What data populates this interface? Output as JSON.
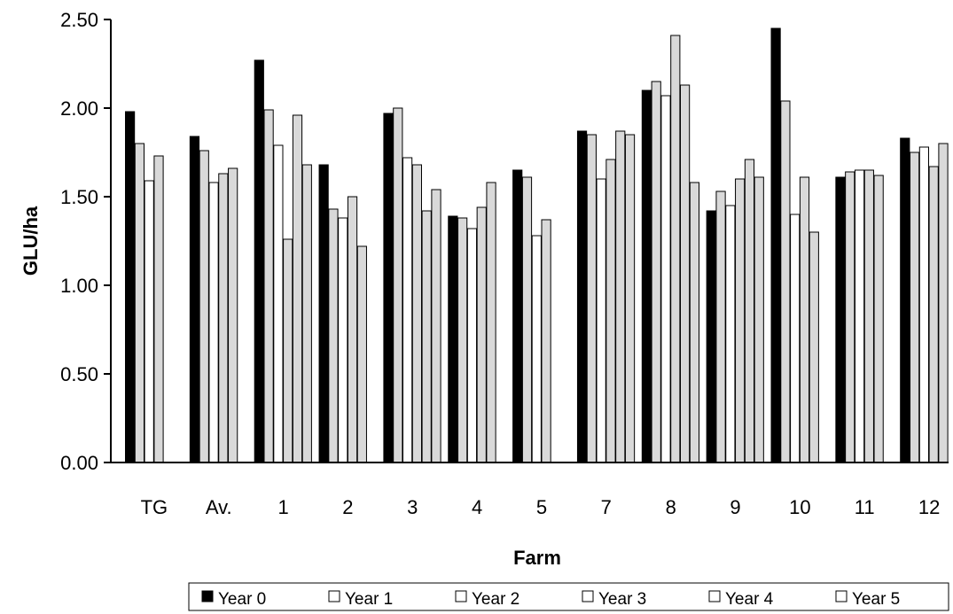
{
  "chart_data": {
    "type": "bar",
    "title": "",
    "xlabel": "Farm",
    "ylabel": "GLU/ha",
    "ylim": [
      0,
      2.5
    ],
    "yticks": [
      "0.00",
      "0.50",
      "1.00",
      "1.50",
      "2.00",
      "2.50"
    ],
    "grid": false,
    "legend_position": "bottom",
    "categories": [
      "TG",
      "Av.",
      "1",
      "2",
      "3",
      "4",
      "5",
      "7",
      "8",
      "9",
      "10",
      "11",
      "12"
    ],
    "series": [
      {
        "name": "Year 0",
        "color": "#000000",
        "values": [
          1.98,
          1.84,
          2.27,
          1.68,
          1.97,
          1.39,
          1.65,
          1.87,
          2.1,
          1.42,
          2.45,
          1.61,
          1.83
        ]
      },
      {
        "name": "Year 1",
        "color": "#d9d9d9",
        "values": [
          1.8,
          1.76,
          1.99,
          1.43,
          2.0,
          1.38,
          1.61,
          1.85,
          2.15,
          1.53,
          2.04,
          1.64,
          1.75
        ]
      },
      {
        "name": "Year 2",
        "color": "#ffffff",
        "values": [
          1.59,
          1.58,
          1.79,
          1.38,
          1.72,
          1.32,
          1.28,
          1.6,
          2.07,
          1.45,
          1.4,
          1.65,
          1.78
        ]
      },
      {
        "name": "Year 3",
        "color": "#d9d9d9",
        "values": [
          1.73,
          1.63,
          1.26,
          1.5,
          1.68,
          1.44,
          1.37,
          1.71,
          2.41,
          1.6,
          1.61,
          1.65,
          1.67
        ]
      },
      {
        "name": "Year 4",
        "color": "#d9d9d9",
        "values": [
          null,
          1.66,
          1.96,
          1.22,
          1.42,
          1.58,
          null,
          1.87,
          2.13,
          1.71,
          1.3,
          1.62,
          1.8
        ]
      },
      {
        "name": "Year 5",
        "color": "#d9d9d9",
        "values": [
          null,
          null,
          1.68,
          null,
          1.54,
          null,
          null,
          1.85,
          1.58,
          1.61,
          null,
          null,
          null
        ]
      }
    ]
  }
}
